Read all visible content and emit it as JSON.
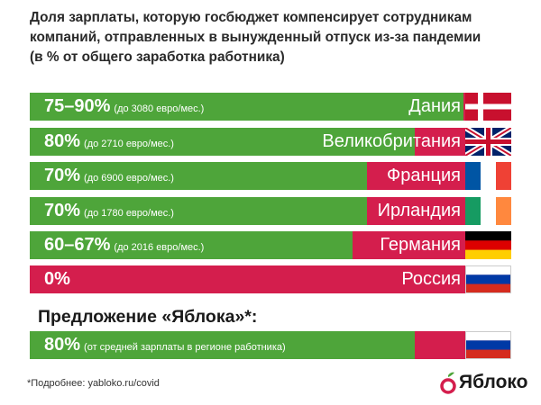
{
  "header": {
    "title_lines": [
      "Доля зарплаты, которую госбюджет компенсирует сотрудникам",
      "компаний, отправленных в вынужденный отпуск из-за пандемии",
      "(в % от общего заработка работника)"
    ]
  },
  "chart_data": {
    "type": "bar",
    "title": "Доля зарплаты, которую госбюджет компенсирует сотрудникам компаний, отправленных в вынужденный отпуск из-за пандемии",
    "ylabel": "(в % от общего заработка работника)",
    "xlim": [
      0,
      100
    ],
    "orientation": "horizontal",
    "colors": {
      "fill": "#4ea53a",
      "remainder": "#d41e4d"
    },
    "rows": [
      {
        "country": "Дания",
        "label": "75–90%",
        "note": "(до 3080 евро/мес.)",
        "value": 90,
        "flag": "denmark-flag"
      },
      {
        "country": "Великобритания",
        "label": "80%",
        "note": "(до 2710 евро/мес.)",
        "value": 80,
        "flag": "uk-flag"
      },
      {
        "country": "Франция",
        "label": "70%",
        "note": "(до 6900 евро/мес.)",
        "value": 70,
        "flag": "france-flag"
      },
      {
        "country": "Ирландия",
        "label": "70%",
        "note": "(до 1780 евро/мес.)",
        "value": 70,
        "flag": "ireland-flag"
      },
      {
        "country": "Германия",
        "label": "60–67%",
        "note": "(до 2016 евро/мес.)",
        "value": 67,
        "flag": "germany-flag"
      },
      {
        "country": "Россия",
        "label": "0%",
        "note": "",
        "value": 0,
        "flag": "russia-flag"
      }
    ],
    "proposal": {
      "heading": "Предложение «Яблока»*:",
      "label": "80%",
      "note": "(от средней зарплаты в регионе работника)",
      "value": 80,
      "flag": "russia-flag"
    }
  },
  "footer": {
    "footnote": "*Подробнее: yabloko.ru/covid",
    "logo_text": "Яблоко",
    "logo_icon": "yabloko-apple-icon"
  }
}
